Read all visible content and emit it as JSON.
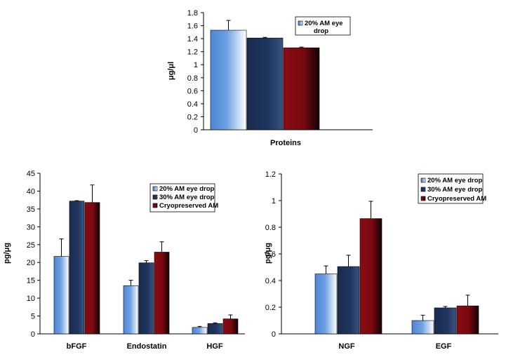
{
  "colors": {
    "s1": "#5a8fd8",
    "s2": "#1c3055",
    "s3": "#7e0a14",
    "axis": "#000000",
    "background": "#ffffff"
  },
  "chart_data": [
    {
      "id": "proteins",
      "type": "bar",
      "categories": [
        "Proteins"
      ],
      "series": [
        {
          "name": "20% AM eye drop",
          "values": [
            1.53
          ],
          "errors": [
            0.15
          ]
        },
        {
          "name": "",
          "values": [
            1.41
          ],
          "errors": [
            0.01
          ]
        },
        {
          "name": "",
          "values": [
            1.26
          ],
          "errors": [
            0.01
          ]
        }
      ],
      "ylabel": "μg/μl",
      "ylim": [
        0,
        1.8
      ],
      "yticks": [
        0,
        0.2,
        0.4,
        0.6,
        0.8,
        1,
        1.2,
        1.4,
        1.6,
        1.8
      ],
      "ytick_labels": [
        "0",
        "0.2",
        "0.4",
        "0.6",
        "0.8",
        "1",
        "1.2",
        "1.4",
        "1.6",
        "1.8"
      ],
      "legend": {
        "entries": [
          "20% AM eye drop"
        ],
        "position": "top-right"
      },
      "grid": false
    },
    {
      "id": "growth-factors-left",
      "type": "bar",
      "categories": [
        "bFGF",
        "Endostatin",
        "HGF"
      ],
      "series": [
        {
          "name": "20% AM eye drop",
          "values": [
            21.7,
            13.5,
            1.8
          ],
          "errors": [
            4.9,
            1.5,
            0.3
          ]
        },
        {
          "name": "30% AM eye drop",
          "values": [
            37.2,
            19.9,
            2.9
          ],
          "errors": [
            0.1,
            0.6,
            0.2
          ]
        },
        {
          "name": "Cryopreserved AM",
          "values": [
            36.8,
            22.9,
            4.2
          ],
          "errors": [
            4.9,
            2.9,
            1.1
          ]
        }
      ],
      "ylabel": "pg/μg",
      "ylim": [
        0,
        45
      ],
      "yticks": [
        0,
        5,
        10,
        15,
        20,
        25,
        30,
        35,
        40,
        45
      ],
      "ytick_labels": [
        "0",
        "5",
        "10",
        "15",
        "20",
        "25",
        "30",
        "35",
        "40",
        "45"
      ],
      "legend": {
        "entries": [
          "20% AM eye drop",
          "30% AM eye drop",
          "Cryopreserved AM"
        ],
        "position": "top-right"
      },
      "grid": false
    },
    {
      "id": "growth-factors-right",
      "type": "bar",
      "categories": [
        "NGF",
        "EGF"
      ],
      "series": [
        {
          "name": "20% AM eye drop",
          "values": [
            0.45,
            0.1
          ],
          "errors": [
            0.06,
            0.04
          ]
        },
        {
          "name": "30% AM eye drop",
          "values": [
            0.505,
            0.195
          ],
          "errors": [
            0.085,
            0.01
          ]
        },
        {
          "name": "Cryopreserved AM",
          "values": [
            0.865,
            0.21
          ],
          "errors": [
            0.13,
            0.08
          ]
        }
      ],
      "ylabel": "pg/μg",
      "ylim": [
        0,
        1.2
      ],
      "yticks": [
        0,
        0.2,
        0.4,
        0.6,
        0.8,
        1,
        1.2
      ],
      "ytick_labels": [
        "0",
        "0.2",
        "0.4",
        "0.6",
        "0.8",
        "1",
        "1.2"
      ],
      "legend": {
        "entries": [
          "20% AM eye drop",
          "30% AM eye drop",
          "Cryopreserved AM"
        ],
        "position": "top-right"
      },
      "grid": false
    }
  ]
}
